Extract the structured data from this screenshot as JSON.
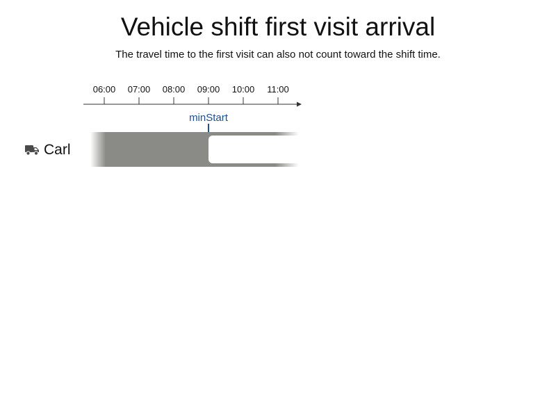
{
  "title": "Vehicle shift first visit arrival",
  "subtitle": "The travel time to the first visit can also not count toward the shift time.",
  "timeline": {
    "ticks": [
      "06:00",
      "07:00",
      "08:00",
      "09:00",
      "10:00",
      "11:00"
    ],
    "marker": {
      "label": "minStart",
      "time": "09:00",
      "color": "#1f4e8c"
    }
  },
  "vehicles": [
    {
      "name": "Carl",
      "icon": "truck-icon",
      "shift_color": "#8a8b86",
      "visit_start": "09:00"
    }
  ]
}
